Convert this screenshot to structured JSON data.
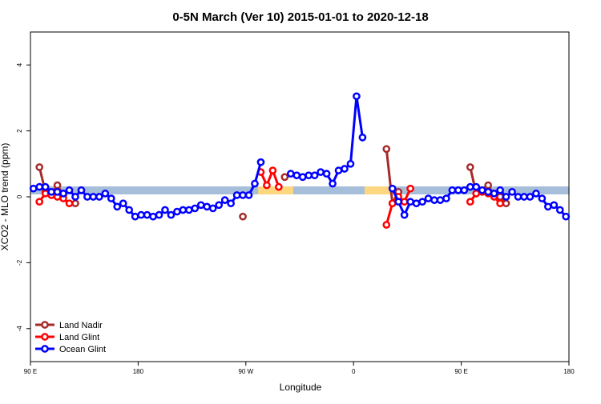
{
  "chart_data": {
    "type": "line",
    "title": "0-5N March (Ver 10)   2015-01-01 to 2020-12-18",
    "x_label": "Longitude",
    "y_label": "XCO2 - MLO trend (ppm)",
    "xlim": [
      90,
      540
    ],
    "xticks": [
      {
        "value": 90,
        "label": "90 E"
      },
      180,
      {
        "value": 270,
        "label": "90 W"
      },
      {
        "value": 360,
        "label": "0"
      },
      {
        "value": 450,
        "label": "90 E"
      },
      {
        "value": 540,
        "label": "180"
      }
    ],
    "ylim": [
      -5,
      5
    ],
    "yticks": [
      -4,
      -2,
      0,
      2,
      4
    ],
    "legend": "bottom-left",
    "series": [
      {
        "name": "Land Nadir",
        "color": "#a52a2a",
        "x": [
          97.5,
          102.5,
          107.5,
          112.5,
          117.5,
          122.5,
          127.5,
          132.5,
          267.5,
          272.5,
          302.5,
          307.5,
          387.5,
          392.5,
          397.5,
          402.5,
          457.5,
          462.5,
          472.5,
          477.5,
          482.5,
          487.5
        ],
        "values": [
          0.9,
          0.15,
          0.1,
          0.35,
          0.05,
          null,
          -0.2,
          null,
          -0.6,
          null,
          0.6,
          null,
          1.45,
          -0.2,
          0.15,
          null,
          0.9,
          0.1,
          0.35,
          0.05,
          0,
          -0.2
        ]
      },
      {
        "name": "Land Glint",
        "color": "#ff0000",
        "x": [
          97.5,
          102.5,
          107.5,
          112.5,
          117.5,
          122.5,
          127.5,
          282.5,
          287.5,
          292.5,
          297.5,
          302.5,
          387.5,
          392.5,
          397.5,
          402.5,
          407.5,
          412.5,
          457.5,
          462.5,
          467.5,
          472.5,
          477.5,
          482.5
        ],
        "values": [
          -0.15,
          0.1,
          0.05,
          0,
          -0.05,
          -0.2,
          null,
          0.75,
          0.35,
          0.8,
          0.3,
          null,
          -0.85,
          -0.2,
          0,
          -0.15,
          0.25,
          null,
          -0.15,
          0.1,
          0.15,
          0.1,
          0,
          -0.2
        ]
      },
      {
        "name": "Ocean Glint",
        "color": "#0000ff",
        "x": [
          92.5,
          97.5,
          102.5,
          107.5,
          112.5,
          117.5,
          122.5,
          127.5,
          132.5,
          137.5,
          142.5,
          147.5,
          152.5,
          157.5,
          162.5,
          167.5,
          172.5,
          177.5,
          182.5,
          187.5,
          192.5,
          197.5,
          202.5,
          207.5,
          212.5,
          217.5,
          222.5,
          227.5,
          232.5,
          237.5,
          242.5,
          247.5,
          252.5,
          257.5,
          262.5,
          267.5,
          272.5,
          277.5,
          282.5,
          287.5,
          307.5,
          312.5,
          317.5,
          322.5,
          327.5,
          332.5,
          337.5,
          342.5,
          347.5,
          352.5,
          357.5,
          362.5,
          367.5,
          372.5,
          392.5,
          397.5,
          402.5,
          407.5,
          412.5,
          417.5,
          422.5,
          427.5,
          432.5,
          437.5,
          442.5,
          447.5,
          452.5,
          457.5,
          462.5,
          467.5,
          472.5,
          477.5,
          482.5,
          487.5,
          492.5,
          497.5,
          502.5,
          507.5,
          512.5,
          517.5,
          522.5,
          527.5,
          532.5,
          537.5
        ],
        "values": [
          0.25,
          0.3,
          0.3,
          0.15,
          0.15,
          0.1,
          0.2,
          0,
          0.2,
          0,
          0,
          0,
          0.1,
          -0.05,
          -0.3,
          -0.2,
          -0.4,
          -0.6,
          -0.55,
          -0.55,
          -0.6,
          -0.55,
          -0.4,
          -0.55,
          -0.45,
          -0.4,
          -0.4,
          -0.35,
          -0.25,
          -0.3,
          -0.35,
          -0.25,
          -0.1,
          -0.2,
          0.05,
          0.05,
          0.05,
          0.4,
          1.05,
          null,
          0.7,
          0.65,
          0.6,
          0.65,
          0.65,
          0.75,
          0.7,
          0.4,
          0.8,
          0.85,
          1.0,
          3.05,
          1.8,
          null,
          0.25,
          -0.15,
          -0.55,
          -0.15,
          -0.2,
          -0.15,
          -0.05,
          -0.1,
          -0.1,
          -0.05,
          0.2,
          0.2,
          0.2,
          0.3,
          0.3,
          0.2,
          0.15,
          0.1,
          0.2,
          0,
          0.15,
          0,
          0,
          0,
          0.1,
          -0.05,
          -0.3,
          -0.25,
          -0.4,
          -0.6
        ]
      }
    ]
  }
}
